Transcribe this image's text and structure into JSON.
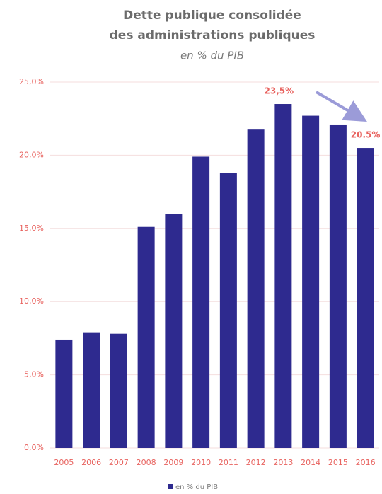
{
  "chart_data": {
    "type": "bar",
    "title": [
      "Dette publique consolidée",
      "des administrations publiques"
    ],
    "subtitle": "en % du PIB",
    "categories": [
      "2005",
      "2006",
      "2007",
      "2008",
      "2009",
      "2010",
      "2011",
      "2012",
      "2013",
      "2014",
      "2015",
      "2016"
    ],
    "series": [
      {
        "name": "en % du PIB",
        "color": "#2e2a8f",
        "values": [
          7.4,
          7.9,
          7.8,
          15.1,
          16.0,
          19.9,
          18.8,
          21.8,
          23.5,
          22.7,
          22.1,
          20.5
        ],
        "value_labels": [
          null,
          null,
          null,
          null,
          null,
          null,
          null,
          null,
          "23,5%",
          null,
          null,
          "20.5%"
        ]
      }
    ],
    "ylim": [
      0,
      25
    ],
    "yticks": [
      {
        "value": 0,
        "label": "0,0%"
      },
      {
        "value": 5,
        "label": "5,0%"
      },
      {
        "value": 10,
        "label": "10,0%"
      },
      {
        "value": 15,
        "label": "15,0%"
      },
      {
        "value": 20,
        "label": "20,0%"
      },
      {
        "value": 25,
        "label": "25,0%"
      }
    ],
    "grid": true
  }
}
